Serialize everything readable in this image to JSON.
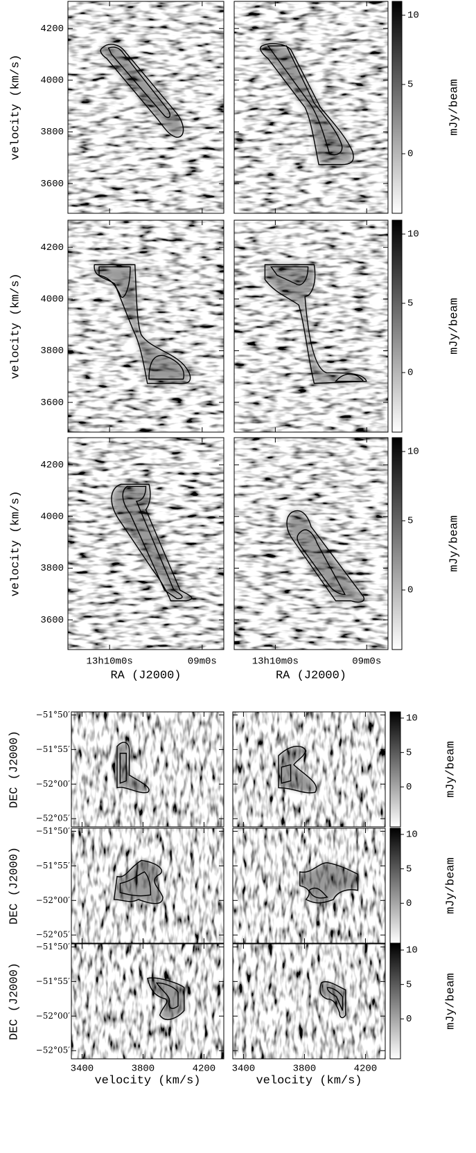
{
  "chart_data": [
    {
      "type": "image",
      "grid_rows": 3,
      "grid_cols": 2,
      "ylabel": "velocity (km/s)",
      "xlabel": "RA (J2000)",
      "ylim": [
        3485,
        4305
      ],
      "yticks": [
        3600,
        3800,
        4000,
        4200
      ],
      "xlim": [
        47427,
        47326
      ],
      "xticks": [
        {
          "value": 47400,
          "label": "13h10m0s"
        },
        {
          "value": 47340,
          "label": "09m0s"
        }
      ],
      "cmap": [
        "#ffffff",
        "#000000"
      ],
      "colorbar": {
        "label": "mJy/beam",
        "lim": [
          -4.3,
          11
        ],
        "ticks": [
          0,
          5,
          10
        ]
      }
    },
    {
      "type": "image",
      "grid_rows": 3,
      "grid_cols": 2,
      "ylabel": "DEC (J2000)",
      "xlabel": "velocity (km/s)",
      "ylim": [
        -52.103,
        -51.826
      ],
      "yticks": [
        {
          "value": -52.0833,
          "label": "−52°05′"
        },
        {
          "value": -52.0,
          "label": "−52°00′"
        },
        {
          "value": -51.9167,
          "label": "−51°55′"
        },
        {
          "value": -51.8333,
          "label": "−51°50′"
        }
      ],
      "xlim": [
        3330,
        4330
      ],
      "xticks": [
        3400,
        3800,
        4200
      ],
      "cmap": [
        "#ffffff",
        "#000000"
      ],
      "colorbar": {
        "label": "mJy/beam",
        "lim": [
          -5.8,
          10.9
        ],
        "ticks": [
          0,
          5,
          10
        ]
      }
    }
  ]
}
